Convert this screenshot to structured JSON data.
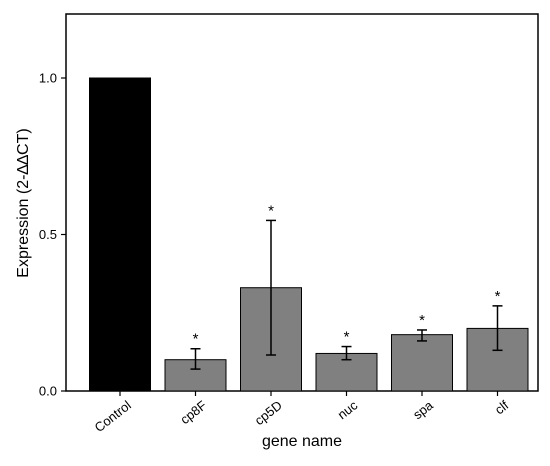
{
  "chart_data": {
    "type": "bar",
    "xlabel": "gene name",
    "ylabel": "Expression (2-∆∆CT)",
    "ylim": [
      0,
      1.2
    ],
    "yticks": [
      {
        "value": 0.0,
        "label": "0.0"
      },
      {
        "value": 0.5,
        "label": "0.5"
      },
      {
        "value": 1.0,
        "label": "1.0"
      }
    ],
    "categories": [
      "Control",
      "cp8F",
      "cp5D",
      "nuc",
      "spa",
      "clf"
    ],
    "values": [
      1.0,
      0.1,
      0.33,
      0.12,
      0.18,
      0.2
    ],
    "error_low": [
      null,
      0.07,
      0.115,
      0.1,
      0.16,
      0.13
    ],
    "error_high": [
      null,
      0.135,
      0.545,
      0.142,
      0.195,
      0.272
    ],
    "significance": [
      "",
      "*",
      "*",
      "*",
      "*",
      "*"
    ],
    "bar_colors": [
      "#000000",
      "#808080",
      "#808080",
      "#808080",
      "#808080",
      "#808080"
    ],
    "grid": false
  }
}
